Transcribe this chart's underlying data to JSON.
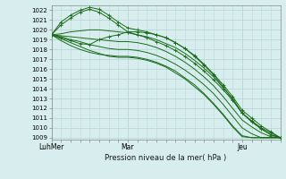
{
  "bg_color": "#d8eeee",
  "grid_color": "#b8d8d8",
  "line_color": "#1a6b1a",
  "ylabel_ticks": [
    1009,
    1010,
    1011,
    1012,
    1013,
    1014,
    1015,
    1016,
    1017,
    1018,
    1019,
    1020,
    1021,
    1022
  ],
  "ymin": 1008.8,
  "ymax": 1022.5,
  "xlabel": "Pression niveau de la mer( hPa )",
  "xtick_labels": [
    "LuhMer",
    "Mar",
    "Jeu"
  ],
  "xtick_positions": [
    0,
    48,
    120
  ],
  "xmax": 144,
  "lines": [
    {
      "x": [
        0,
        6,
        12,
        18,
        24,
        30,
        36,
        42,
        48,
        54,
        60,
        66,
        72,
        78,
        84,
        90,
        96,
        102,
        108,
        114,
        120,
        126,
        132,
        138,
        144
      ],
      "y": [
        1019.5,
        1020.5,
        1021.2,
        1021.8,
        1022.1,
        1021.8,
        1021.2,
        1020.5,
        1019.8,
        1019.5,
        1019.2,
        1018.8,
        1018.4,
        1017.9,
        1017.3,
        1016.6,
        1015.8,
        1014.9,
        1013.9,
        1012.8,
        1011.5,
        1010.7,
        1010.0,
        1009.5,
        1009.0
      ],
      "marker": true
    },
    {
      "x": [
        0,
        6,
        12,
        18,
        24,
        30,
        36,
        42,
        48,
        54,
        60,
        66,
        72,
        78,
        84,
        90,
        96,
        102,
        108,
        114,
        120,
        126,
        132,
        138,
        144
      ],
      "y": [
        1019.5,
        1020.8,
        1021.5,
        1022.0,
        1022.3,
        1022.1,
        1021.5,
        1020.8,
        1020.2,
        1020.0,
        1019.8,
        1019.5,
        1019.2,
        1018.7,
        1018.1,
        1017.4,
        1016.5,
        1015.5,
        1014.4,
        1013.2,
        1011.8,
        1011.0,
        1010.2,
        1009.6,
        1009.0
      ],
      "marker": true
    },
    {
      "x": [
        0,
        6,
        12,
        18,
        24,
        30,
        36,
        42,
        48,
        54,
        60,
        66,
        72,
        78,
        84,
        90,
        96,
        102,
        108,
        114,
        120,
        126,
        132,
        138,
        144
      ],
      "y": [
        1019.5,
        1019.6,
        1019.8,
        1019.9,
        1020.0,
        1020.0,
        1019.9,
        1019.8,
        1019.7,
        1019.5,
        1019.3,
        1019.0,
        1018.6,
        1018.2,
        1017.6,
        1016.9,
        1016.1,
        1015.2,
        1014.1,
        1013.0,
        1011.5,
        1010.7,
        1009.9,
        1009.3,
        1009.0
      ],
      "marker": false
    },
    {
      "x": [
        0,
        6,
        12,
        18,
        24,
        30,
        36,
        42,
        48,
        54,
        60,
        66,
        72,
        78,
        84,
        90,
        96,
        102,
        108,
        114,
        120,
        126,
        132,
        138,
        144
      ],
      "y": [
        1019.5,
        1019.4,
        1019.3,
        1019.2,
        1019.1,
        1019.0,
        1018.9,
        1018.8,
        1018.8,
        1018.7,
        1018.5,
        1018.2,
        1017.8,
        1017.3,
        1016.7,
        1016.0,
        1015.2,
        1014.3,
        1013.2,
        1012.0,
        1010.8,
        1010.1,
        1009.5,
        1009.1,
        1009.0
      ],
      "marker": false
    },
    {
      "x": [
        0,
        6,
        12,
        18,
        24,
        30,
        36,
        42,
        48,
        54,
        60,
        66,
        72,
        78,
        84,
        90,
        96,
        102,
        108,
        114,
        120,
        126,
        132,
        138,
        144
      ],
      "y": [
        1019.5,
        1019.3,
        1019.0,
        1018.8,
        1018.5,
        1018.3,
        1018.1,
        1018.0,
        1018.0,
        1017.9,
        1017.7,
        1017.4,
        1017.0,
        1016.5,
        1015.9,
        1015.2,
        1014.4,
        1013.5,
        1012.4,
        1011.2,
        1010.0,
        1009.4,
        1009.0,
        1009.0,
        1009.0
      ],
      "marker": false
    },
    {
      "x": [
        0,
        6,
        12,
        18,
        24,
        30,
        36,
        42,
        48,
        54,
        60,
        66,
        72,
        78,
        84,
        90,
        96,
        102,
        108,
        114,
        120,
        126,
        132,
        138,
        144
      ],
      "y": [
        1019.5,
        1019.1,
        1018.7,
        1018.3,
        1017.9,
        1017.6,
        1017.3,
        1017.2,
        1017.2,
        1017.1,
        1016.9,
        1016.6,
        1016.2,
        1015.6,
        1015.0,
        1014.2,
        1013.4,
        1012.4,
        1011.3,
        1010.1,
        1009.1,
        1009.0,
        1009.0,
        1009.0,
        1009.0
      ],
      "marker": false
    },
    {
      "x": [
        0,
        6,
        12,
        18,
        24,
        30,
        36,
        42,
        48,
        54,
        60,
        66,
        72,
        78,
        84,
        90,
        96,
        102,
        108,
        114,
        120,
        126,
        132,
        138,
        144
      ],
      "y": [
        1019.5,
        1018.9,
        1018.4,
        1018.0,
        1017.7,
        1017.5,
        1017.4,
        1017.3,
        1017.3,
        1017.2,
        1017.0,
        1016.7,
        1016.3,
        1015.8,
        1015.1,
        1014.4,
        1013.5,
        1012.5,
        1011.4,
        1010.2,
        1009.2,
        1009.0,
        1009.0,
        1009.0,
        1009.0
      ],
      "marker": false
    },
    {
      "x": [
        0,
        6,
        12,
        18,
        24,
        30,
        36,
        42,
        48,
        54,
        60,
        66,
        72,
        78,
        84,
        90,
        96,
        102,
        108,
        114,
        120,
        126,
        132,
        138,
        144
      ],
      "y": [
        1019.5,
        1019.2,
        1018.9,
        1018.6,
        1018.5,
        1019.0,
        1019.3,
        1019.5,
        1019.8,
        1019.8,
        1019.7,
        1019.5,
        1019.2,
        1018.7,
        1018.1,
        1017.3,
        1016.4,
        1015.4,
        1014.2,
        1012.9,
        1011.5,
        1010.6,
        1009.9,
        1009.3,
        1009.0
      ],
      "marker": true
    }
  ]
}
